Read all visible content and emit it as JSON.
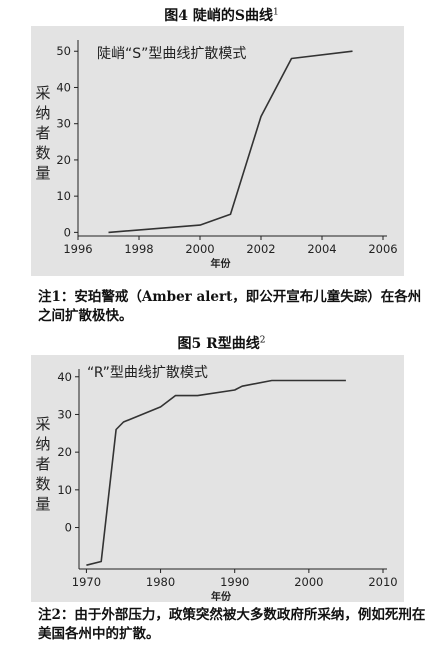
{
  "figure4": {
    "title": "图4  陡峭的S曲线",
    "title_sup": "1",
    "note": "注1：安珀警戒（Amber alert，即公开宣布儿童失踪）在各州之间扩散极快。"
  },
  "figure5": {
    "title": "图5  R型曲线",
    "title_sup": "2",
    "note": "注2：由于外部压力，政策突然被大多数政府所采纳，例如死刑在美国各州中的扩散。"
  },
  "chart_data": [
    {
      "type": "line",
      "annotation": "陡峭“S”型曲线扩散模式",
      "ylabel": "采纳者数量",
      "xlabel": "年份",
      "x": [
        1997,
        2000,
        2001,
        2002,
        2003,
        2005
      ],
      "y": [
        0,
        2,
        5,
        32,
        48,
        50
      ],
      "xlim": [
        1996,
        2006
      ],
      "ylim": [
        -1,
        52
      ],
      "xticks": [
        1996,
        1998,
        2000,
        2002,
        2004,
        2006
      ],
      "yticks": [
        0,
        10,
        20,
        30,
        40,
        50
      ],
      "color": "#333333",
      "background": "#e3e3e3"
    },
    {
      "type": "line",
      "annotation": "“R”型曲线扩散模式",
      "ylabel": "采纳者数量",
      "xlabel": "年份",
      "x": [
        1970,
        1972,
        1974,
        1975,
        1980,
        1982,
        1985,
        1990,
        1991,
        1995,
        2005
      ],
      "y": [
        -10,
        -9,
        26,
        28,
        32,
        35,
        35,
        36.5,
        37.5,
        39,
        39
      ],
      "xlim": [
        1969,
        2010
      ],
      "ylim": [
        -11,
        41
      ],
      "xticks": [
        1970,
        1980,
        1990,
        2000,
        2010
      ],
      "yticks": [
        0,
        10,
        20,
        30,
        40
      ],
      "color": "#333333",
      "background": "#e3e3e3"
    }
  ]
}
